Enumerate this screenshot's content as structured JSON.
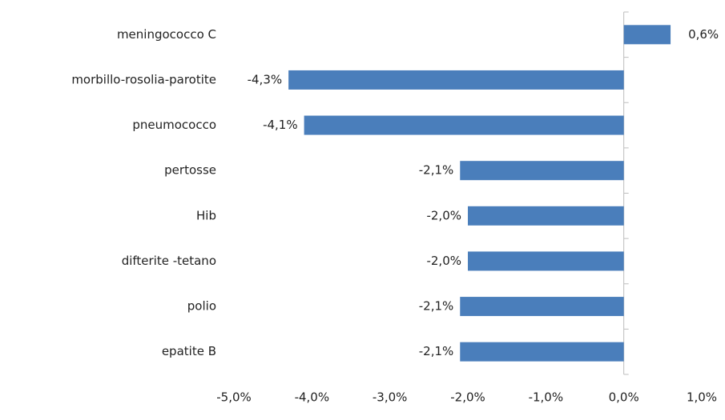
{
  "chart_data": {
    "type": "bar",
    "orientation": "horizontal",
    "categories": [
      "meningococco C",
      "morbillo-rosolia-parotite",
      "pneumococco",
      "pertosse",
      "Hib",
      "difterite -tetano",
      "polio",
      "epatite B"
    ],
    "values": [
      0.6,
      -4.3,
      -4.1,
      -2.1,
      -2.0,
      -2.0,
      -2.1,
      -2.1
    ],
    "value_labels": [
      "0,6%",
      "-4,3%",
      "-4,1%",
      "-2,1%",
      "-2,0%",
      "-2,0%",
      "-2,1%",
      "-2,1%"
    ],
    "color": "#4a7ebb",
    "xlim": [
      -5,
      1
    ],
    "xticks": [
      {
        "value": -5,
        "label": "-5,0%"
      },
      {
        "value": -4,
        "label": "-4,0%"
      },
      {
        "value": -3,
        "label": "-3,0%"
      },
      {
        "value": -2,
        "label": "-2,0%"
      },
      {
        "value": -1,
        "label": "-1,0%"
      },
      {
        "value": 0,
        "label": "0,0%"
      },
      {
        "value": 1,
        "label": "1,0%"
      }
    ],
    "grid": false
  }
}
